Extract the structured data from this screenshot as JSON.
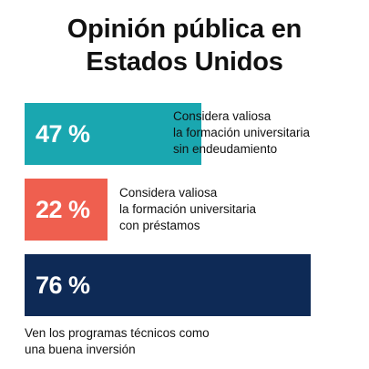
{
  "chart_data": {
    "type": "bar",
    "title_lines": [
      "Opinión pública en",
      "Estados Unidos"
    ],
    "unit": "%",
    "max": 100,
    "bars": [
      {
        "value": 47,
        "value_label": "47 %",
        "label_lines": [
          "Considera valiosa",
          "la formación universitaria",
          "sin endeudamiento"
        ],
        "color": "#1aa7b0"
      },
      {
        "value": 22,
        "value_label": "22 %",
        "label_lines": [
          "Considera valiosa",
          "la formación universitaria",
          "con préstamos"
        ],
        "color": "#ef5f4f"
      },
      {
        "value": 76,
        "value_label": "76 %",
        "label_lines": [
          "Ven los programas técnicos como",
          "una buena inversión"
        ],
        "color": "#0e2a56"
      }
    ]
  }
}
